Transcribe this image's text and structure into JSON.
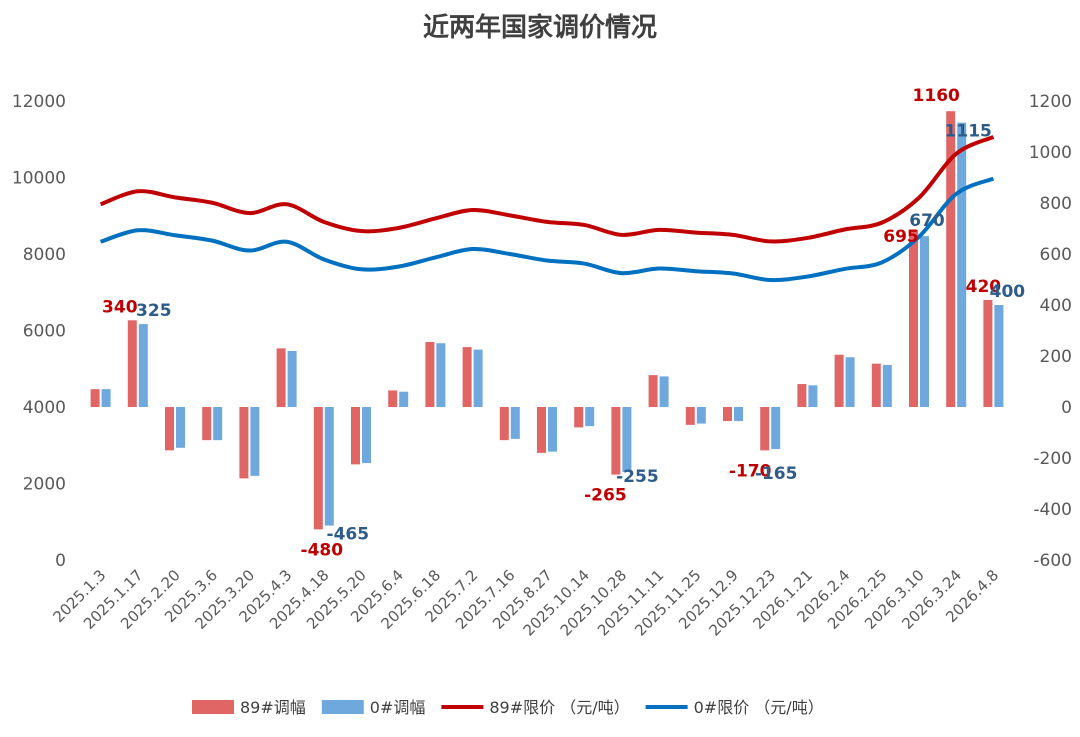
{
  "chart_data": {
    "type": "bar",
    "title": "近两年国家调价情况",
    "categories": [
      "2025.1.3",
      "2025.1.17",
      "2025.2.20",
      "2025.3.6",
      "2025.3.20",
      "2025.4.3",
      "2025.4.18",
      "2025.5.20",
      "2025.6.4",
      "2025.6.18",
      "2025.7.2",
      "2025.7.16",
      "2025.8.27",
      "2025.10.14",
      "2025.10.28",
      "2025.11.11",
      "2025.11.25",
      "2025.12.9",
      "2025.12.23",
      "2026.1.21",
      "2026.2.4",
      "2026.2.25",
      "2026.3.10",
      "2026.3.24",
      "2026.4.8"
    ],
    "left_axis": {
      "ylim": [
        0,
        12000
      ],
      "ticks": [
        "0",
        "2000",
        "4000",
        "6000",
        "8000",
        "10000",
        "12000"
      ]
    },
    "right_axis": {
      "ylim": [
        -600,
        1200
      ],
      "ticks": [
        "-600",
        "-400",
        "-200",
        "0",
        "200",
        "400",
        "600",
        "800",
        "1000",
        "1200"
      ]
    },
    "legend_position": "bottom",
    "series": [
      {
        "name": "89#调幅",
        "kind": "bar",
        "axis": "right",
        "color": "#e06666",
        "values": [
          70,
          340,
          -170,
          -130,
          -280,
          230,
          -480,
          -225,
          65,
          255,
          235,
          -130,
          -180,
          -80,
          -265,
          125,
          -70,
          -55,
          -170,
          90,
          205,
          170,
          695,
          1160,
          420
        ]
      },
      {
        "name": "0#调幅",
        "kind": "bar",
        "axis": "right",
        "color": "#6fa8dc",
        "values": [
          70,
          325,
          -160,
          -130,
          -270,
          220,
          -465,
          -220,
          60,
          250,
          225,
          -125,
          -175,
          -75,
          -255,
          120,
          -65,
          -55,
          -165,
          85,
          195,
          165,
          670,
          1115,
          400
        ]
      },
      {
        "name": "89#限价 （元/吨）",
        "kind": "line",
        "axis": "left",
        "color": "#c00000",
        "values": [
          9300,
          9640,
          9480,
          9340,
          9070,
          9300,
          8840,
          8600,
          8680,
          8930,
          9150,
          9010,
          8840,
          8760,
          8500,
          8630,
          8560,
          8500,
          8330,
          8420,
          8640,
          8820,
          9470,
          10620,
          11060
        ]
      },
      {
        "name": "0#限价 （元/吨）",
        "kind": "line",
        "axis": "left",
        "color": "#0070c0",
        "values": [
          8320,
          8620,
          8490,
          8350,
          8090,
          8320,
          7860,
          7600,
          7670,
          7910,
          8130,
          8000,
          7830,
          7750,
          7500,
          7620,
          7550,
          7490,
          7320,
          7410,
          7610,
          7780,
          8450,
          9570,
          9970
        ]
      }
    ],
    "labels_shown": {
      "89#调幅": {
        "0": "",
        "1": "340",
        "6": "-480",
        "14": "-265",
        "18": "-170",
        "22": "695",
        "23": "1160",
        "24": "420"
      },
      "0#调幅": {
        "1": "325",
        "6": "-465",
        "14": "-255",
        "18": "-165",
        "22": "670",
        "23": "1115",
        "24": "400"
      }
    }
  }
}
